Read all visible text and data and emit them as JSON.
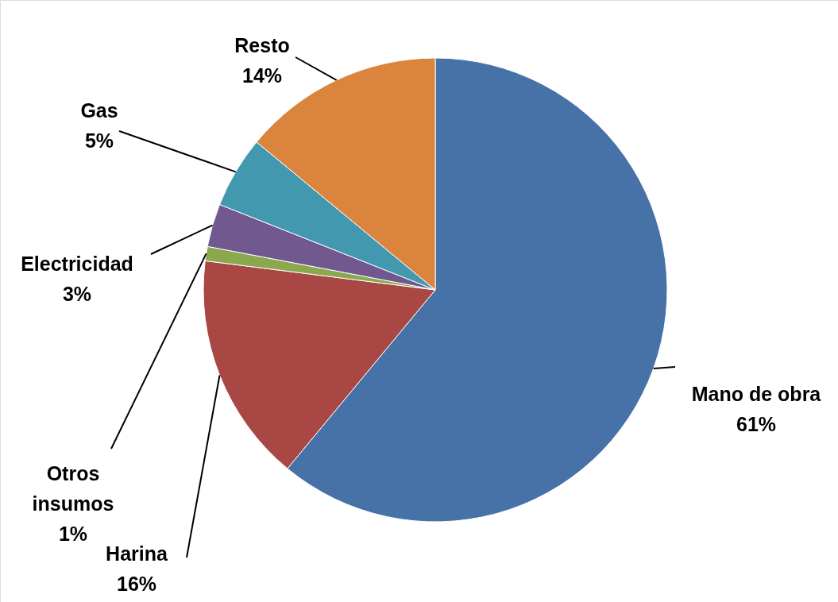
{
  "chart_data": {
    "type": "pie",
    "categories": [
      "Mano de obra",
      "Harina",
      "Otros insumos",
      "Electricidad",
      "Gas",
      "Resto"
    ],
    "values": [
      61,
      16,
      1,
      3,
      5,
      14
    ],
    "value_labels": [
      "61%",
      "16%",
      "1%",
      "3%",
      "5%",
      "14%"
    ],
    "colors": [
      "#4672a8",
      "#a94744",
      "#8aa84d",
      "#71588f",
      "#4198af",
      "#db843d"
    ]
  }
}
